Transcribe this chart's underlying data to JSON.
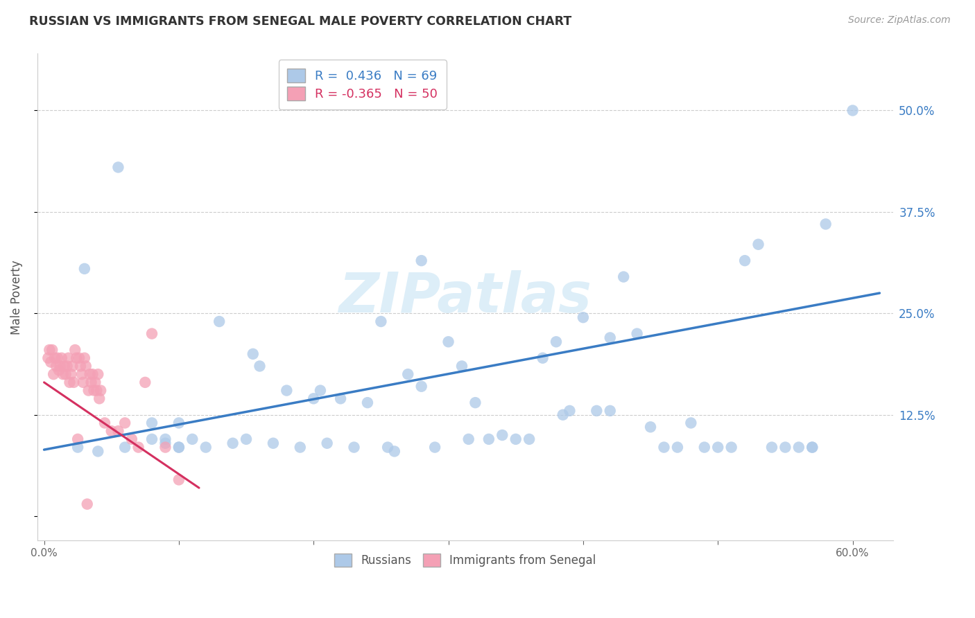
{
  "title": "RUSSIAN VS IMMIGRANTS FROM SENEGAL MALE POVERTY CORRELATION CHART",
  "source": "Source: ZipAtlas.com",
  "ylabel": "Male Poverty",
  "xlim": [
    -0.005,
    0.63
  ],
  "ylim": [
    -0.03,
    0.57
  ],
  "russian_R": 0.436,
  "russian_N": 69,
  "senegal_R": -0.365,
  "senegal_N": 50,
  "russian_color": "#adc9e8",
  "senegal_color": "#f4a0b5",
  "russian_line_color": "#3a7cc4",
  "senegal_line_color": "#d43060",
  "watermark_color": "#ddeef8",
  "background_color": "#ffffff",
  "russian_x": [
    0.025,
    0.04,
    0.06,
    0.08,
    0.09,
    0.1,
    0.1,
    0.11,
    0.12,
    0.13,
    0.14,
    0.15,
    0.155,
    0.16,
    0.17,
    0.18,
    0.19,
    0.2,
    0.205,
    0.21,
    0.22,
    0.23,
    0.24,
    0.25,
    0.255,
    0.26,
    0.27,
    0.28,
    0.29,
    0.3,
    0.31,
    0.315,
    0.32,
    0.33,
    0.34,
    0.35,
    0.36,
    0.37,
    0.38,
    0.385,
    0.39,
    0.4,
    0.41,
    0.42,
    0.43,
    0.44,
    0.45,
    0.46,
    0.47,
    0.48,
    0.49,
    0.5,
    0.51,
    0.52,
    0.53,
    0.54,
    0.55,
    0.56,
    0.57,
    0.58,
    0.08,
    0.09,
    0.1,
    0.03,
    0.055,
    0.28,
    0.42,
    0.57,
    0.6
  ],
  "russian_y": [
    0.085,
    0.08,
    0.085,
    0.115,
    0.09,
    0.115,
    0.085,
    0.095,
    0.085,
    0.24,
    0.09,
    0.095,
    0.2,
    0.185,
    0.09,
    0.155,
    0.085,
    0.145,
    0.155,
    0.09,
    0.145,
    0.085,
    0.14,
    0.24,
    0.085,
    0.08,
    0.175,
    0.16,
    0.085,
    0.215,
    0.185,
    0.095,
    0.14,
    0.095,
    0.1,
    0.095,
    0.095,
    0.195,
    0.215,
    0.125,
    0.13,
    0.245,
    0.13,
    0.13,
    0.295,
    0.225,
    0.11,
    0.085,
    0.085,
    0.115,
    0.085,
    0.085,
    0.085,
    0.315,
    0.335,
    0.085,
    0.085,
    0.085,
    0.085,
    0.36,
    0.095,
    0.095,
    0.085,
    0.305,
    0.43,
    0.315,
    0.22,
    0.085,
    0.5
  ],
  "senegal_x": [
    0.003,
    0.004,
    0.005,
    0.006,
    0.007,
    0.008,
    0.009,
    0.01,
    0.011,
    0.012,
    0.013,
    0.014,
    0.015,
    0.016,
    0.017,
    0.018,
    0.019,
    0.02,
    0.021,
    0.022,
    0.023,
    0.024,
    0.025,
    0.026,
    0.027,
    0.028,
    0.029,
    0.03,
    0.031,
    0.032,
    0.033,
    0.034,
    0.035,
    0.036,
    0.037,
    0.038,
    0.039,
    0.04,
    0.041,
    0.042,
    0.045,
    0.05,
    0.055,
    0.06,
    0.065,
    0.07,
    0.075,
    0.08,
    0.09,
    0.1
  ],
  "senegal_y": [
    0.195,
    0.205,
    0.19,
    0.205,
    0.175,
    0.195,
    0.185,
    0.195,
    0.18,
    0.185,
    0.195,
    0.175,
    0.185,
    0.175,
    0.185,
    0.195,
    0.165,
    0.175,
    0.185,
    0.165,
    0.205,
    0.195,
    0.095,
    0.195,
    0.185,
    0.175,
    0.165,
    0.195,
    0.185,
    0.015,
    0.155,
    0.175,
    0.165,
    0.175,
    0.155,
    0.165,
    0.155,
    0.175,
    0.145,
    0.155,
    0.115,
    0.105,
    0.105,
    0.115,
    0.095,
    0.085,
    0.165,
    0.225,
    0.085,
    0.045
  ],
  "rus_line_x0": 0.0,
  "rus_line_x1": 0.62,
  "rus_line_y0": 0.082,
  "rus_line_y1": 0.275,
  "sen_line_x0": 0.0,
  "sen_line_x1": 0.115,
  "sen_line_y0": 0.165,
  "sen_line_y1": 0.035
}
